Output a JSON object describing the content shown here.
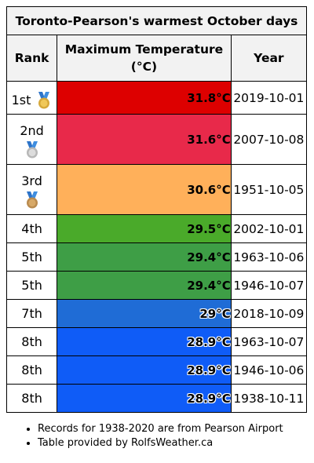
{
  "table": {
    "title": "Toronto-Pearson's warmest October days",
    "headers": {
      "rank": "Rank",
      "temp_line1": "Maximum Temperature",
      "temp_line2": "(°C)",
      "year": "Year"
    },
    "rows": [
      {
        "rank": "1st",
        "medal": "gold-medal-icon",
        "temp": "31.8°C",
        "date": "2019-10-01",
        "color": "#dd0000"
      },
      {
        "rank": "2nd",
        "medal": "silver-medal-icon",
        "temp": "31.6°C",
        "date": "2007-10-08",
        "color": "#e8294a"
      },
      {
        "rank": "3rd",
        "medal": "bronze-medal-icon",
        "temp": "30.6°C",
        "date": "1951-10-05",
        "color": "#ffb05a"
      },
      {
        "rank": "4th",
        "temp": "29.5°C",
        "date": "2002-10-01",
        "color": "#4aaa2a"
      },
      {
        "rank": "5th",
        "temp": "29.4°C",
        "date": "1963-10-06",
        "color": "#3e9e46"
      },
      {
        "rank": "5th",
        "temp": "29.4°C",
        "date": "1946-10-07",
        "color": "#3e9e46"
      },
      {
        "rank": "7th",
        "temp": "29°C",
        "date": "2018-10-09",
        "color": "#1f6cd6"
      },
      {
        "rank": "8th",
        "temp": "28.9°C",
        "date": "1963-10-07",
        "color": "#0f5cf7"
      },
      {
        "rank": "8th",
        "temp": "28.9°C",
        "date": "1946-10-06",
        "color": "#0f5cf7"
      },
      {
        "rank": "8th",
        "temp": "28.9°C",
        "date": "1938-10-11",
        "color": "#0f5cf7"
      }
    ]
  },
  "notes": [
    "Records for 1938-2020 are from Pearson Airport",
    "Table provided by RolfsWeather.ca"
  ]
}
